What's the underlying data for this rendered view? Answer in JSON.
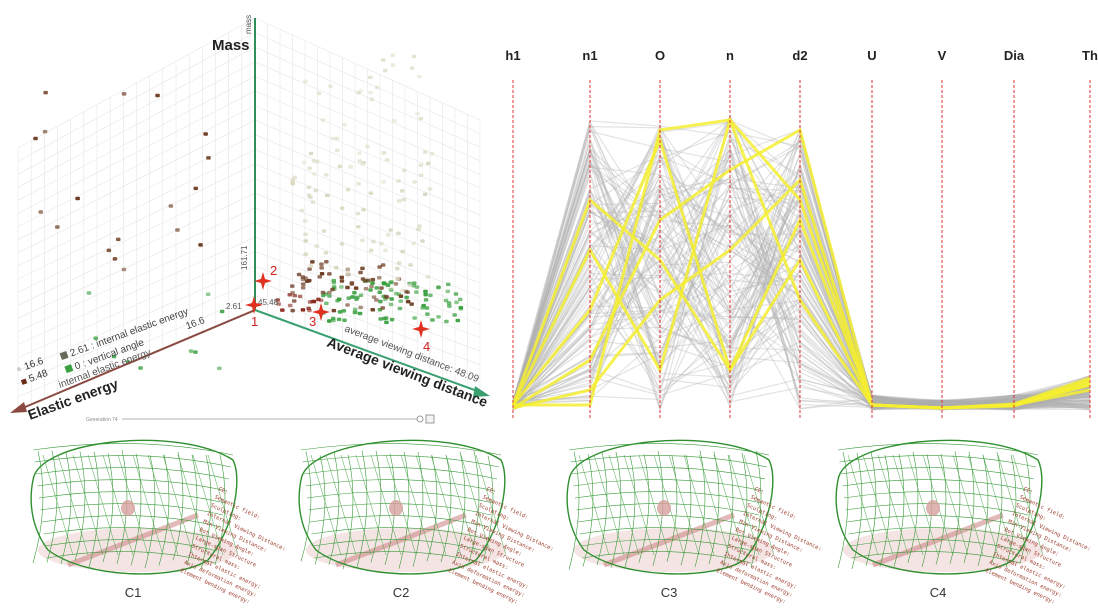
{
  "scatter3d": {
    "axis_mass": "Mass",
    "axis_mass_small": "mass",
    "axis_elastic": "Elastic energy",
    "axis_elastic_small": "internal elastic energy",
    "axis_distance": "Average viewing distance",
    "axis_distance_small": "average viewing distance: 48.09",
    "tick_mass": "161.71",
    "tick_origin_a": "2.61",
    "tick_origin_b": "45.48",
    "legend": [
      {
        "label": "2.61 : internal elastic energy",
        "color": "#6b6b5a"
      },
      {
        "label": "0 : vertical angle",
        "color": "#3aa040"
      }
    ],
    "legend_values": [
      "16.6",
      "5.48"
    ],
    "legend_value_extra": "16.6",
    "slider_label": "Generation",
    "slider_value": "74",
    "markers": [
      "1",
      "2",
      "3",
      "4"
    ],
    "colors": {
      "green": "#3aa040",
      "brown": "#6b3a1f",
      "red": "#e03020",
      "pale": "#d8d8c0"
    }
  },
  "parallel": {
    "axes": [
      "h1",
      "n1",
      "O",
      "n",
      "d2",
      "U",
      "V",
      "Dia",
      "Th"
    ],
    "colors": {
      "line": "#b0b0b0",
      "highlight": "#f5ee30",
      "axis": "#e03030"
    }
  },
  "variants": [
    {
      "caption": "C1",
      "info": [
        "CE:",
        "Semantic field:",
        "Sculpting:",
        "Internal Viewing Distance:",
        "Min Viewing Distance:",
        "Bot Viewing Angle:",
        "Large-span Structure",
        "Structural mass:",
        "Internal elastic energy:",
        "Axis deformation energy:",
        "Element bending energy:"
      ]
    },
    {
      "caption": "C2",
      "info": [
        "CE:",
        "Semantic field:",
        "Sculpting:",
        "Internal Viewing Distance:",
        "Min Viewing Distance:",
        "Bot Viewing Angle:",
        "Large-span Structure",
        "Structural mass:",
        "Internal elastic energy:",
        "Axis deformation energy:",
        "Element bending energy:"
      ]
    },
    {
      "caption": "C3",
      "info": [
        "CE:",
        "Semantic field:",
        "Sculpting:",
        "Internal Viewing Distance:",
        "Min Viewing Distance:",
        "Bot Viewing Angle:",
        "Large-span Structure",
        "Structural mass:",
        "Internal elastic energy:",
        "Axis deformation energy:",
        "Element bending energy:"
      ]
    },
    {
      "caption": "C4",
      "info": [
        "CE:",
        "Semantic field:",
        "Sculpting:",
        "Internal Viewing Distance:",
        "Min Viewing Distance:",
        "Bot Viewing Angle:",
        "Large-span Structure",
        "Structural mass:",
        "Internal elastic energy:",
        "Axis deformation energy:",
        "Element bending energy:"
      ]
    }
  ]
}
